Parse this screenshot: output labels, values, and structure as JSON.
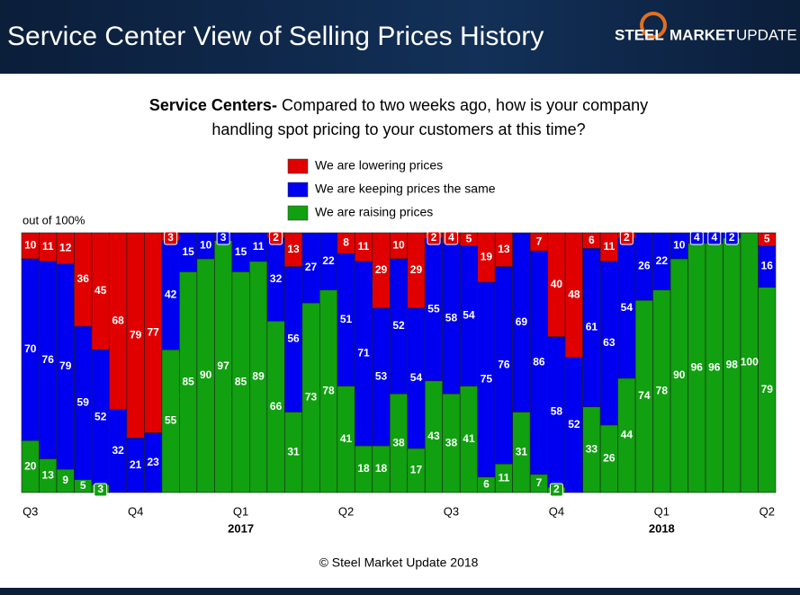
{
  "header": {
    "title": "Service Center View of Selling Prices History",
    "logo": [
      "STEEL",
      "MARKET",
      "UPDATE"
    ]
  },
  "chart_data": {
    "type": "stacked-bar",
    "title_prefix": "Service Centers-",
    "title_lines": [
      "Compared to two weeks ago, how is your company",
      "handling spot pricing to your customers at this time?"
    ],
    "y_label": "out of 100%",
    "categories": [
      "Q3",
      null,
      null,
      null,
      null,
      null,
      "Q4",
      null,
      null,
      null,
      null,
      null,
      "Q1",
      null,
      null,
      null,
      null,
      null,
      "Q2",
      null,
      null,
      null,
      null,
      null,
      "Q3",
      null,
      null,
      null,
      null,
      null,
      "Q4",
      null,
      null,
      null,
      null,
      null,
      "Q1",
      null,
      null,
      null,
      null,
      null,
      "Q2"
    ],
    "category_years": [
      null,
      null,
      null,
      null,
      null,
      null,
      null,
      null,
      null,
      null,
      null,
      null,
      "2017",
      null,
      null,
      null,
      null,
      null,
      null,
      null,
      null,
      null,
      null,
      null,
      null,
      null,
      null,
      null,
      null,
      null,
      null,
      null,
      null,
      null,
      null,
      null,
      "2018",
      null,
      null,
      null,
      null,
      null,
      null
    ],
    "ylim": [
      0,
      100
    ],
    "series": [
      {
        "name": "We are lowering prices",
        "color": "#e00000",
        "values": [
          10,
          11,
          12,
          36,
          45,
          68,
          79,
          77,
          3,
          0,
          0,
          0,
          0,
          0,
          2,
          13,
          0,
          0,
          8,
          11,
          29,
          10,
          29,
          2,
          4,
          5,
          19,
          13,
          0,
          7,
          40,
          48,
          6,
          11,
          2,
          0,
          0,
          0,
          0,
          0,
          0,
          0,
          5
        ]
      },
      {
        "name": "We are keeping prices the same",
        "color": "#0000f0",
        "values": [
          70,
          76,
          79,
          59,
          52,
          32,
          21,
          23,
          42,
          15,
          10,
          3,
          15,
          11,
          32,
          56,
          27,
          22,
          51,
          71,
          53,
          52,
          54,
          55,
          58,
          54,
          75,
          76,
          69,
          86,
          58,
          52,
          61,
          63,
          54,
          26,
          22,
          10,
          4,
          4,
          2,
          0,
          16
        ]
      },
      {
        "name": "We are raising prices",
        "color": "#10a010",
        "values": [
          20,
          13,
          9,
          5,
          3,
          0,
          0,
          0,
          55,
          85,
          90,
          97,
          85,
          89,
          66,
          31,
          73,
          78,
          41,
          18,
          18,
          38,
          17,
          43,
          38,
          41,
          6,
          11,
          31,
          7,
          2,
          0,
          33,
          26,
          44,
          74,
          78,
          90,
          96,
          96,
          98,
          100,
          79
        ]
      }
    ]
  },
  "footer": "© Steel Market Update 2018"
}
